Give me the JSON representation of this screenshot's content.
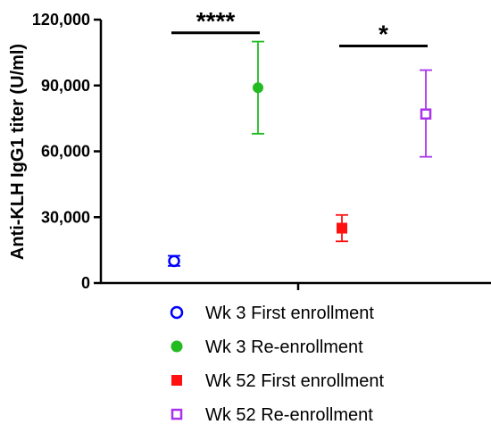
{
  "chart_data": {
    "type": "scatter",
    "ylabel": "Anti-KLH IgG1 titer (U/ml)",
    "ylim": [
      0,
      120000
    ],
    "yticks": [
      0,
      30000,
      60000,
      90000,
      120000
    ],
    "ytick_labels": [
      "0",
      "30,000",
      "60,000",
      "90,000",
      "120,000"
    ],
    "grid": false,
    "legend_position": "bottom",
    "series": [
      {
        "name": "Wk 3 First enrollment",
        "color": "#0000ff",
        "marker": "open-circle",
        "x_slot": 1,
        "value": 10000,
        "lower": 7800,
        "upper": 12400
      },
      {
        "name": "Wk 3 Re-enrollment",
        "color": "#22bb22",
        "marker": "filled-circle",
        "x_slot": 2,
        "value": 89000,
        "lower": 68000,
        "upper": 110000
      },
      {
        "name": "Wk 52 First enrollment",
        "color": "#ff1111",
        "marker": "filled-square",
        "x_slot": 3,
        "value": 25000,
        "lower": 19000,
        "upper": 31000
      },
      {
        "name": "Wk 52 Re-enrollment",
        "color": "#aa33ee",
        "marker": "open-square",
        "x_slot": 4,
        "value": 77000,
        "lower": 57500,
        "upper": 97000
      }
    ],
    "annotations": [
      {
        "text": "****",
        "from_slot": 1,
        "to_slot": 2,
        "y": 114000
      },
      {
        "text": "*",
        "from_slot": 3,
        "to_slot": 4,
        "y": 108000
      }
    ]
  }
}
